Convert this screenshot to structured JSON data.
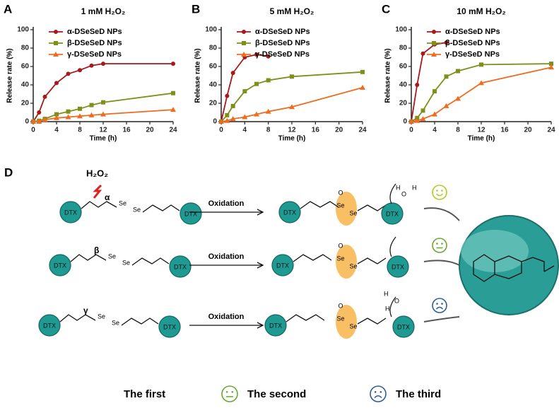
{
  "chart_data": [
    {
      "type": "line",
      "panel": "A",
      "title": "1 mM H₂O₂",
      "xlabel": "Time (h)",
      "ylabel": "Release rate (%)",
      "x": [
        0,
        1,
        2,
        4,
        6,
        8,
        10,
        12,
        24
      ],
      "xlim": [
        0,
        24
      ],
      "xticks": [
        0,
        4,
        8,
        12,
        16,
        20,
        24
      ],
      "ylim": [
        0,
        100
      ],
      "yticks": [
        0,
        20,
        40,
        60,
        80,
        100
      ],
      "series": [
        {
          "name": "α-DSeSeD NPs",
          "color": "#a8191c",
          "marker": "circle",
          "values": [
            0,
            10,
            27,
            42,
            52,
            56,
            61,
            63,
            63
          ]
        },
        {
          "name": "β-DSeSeD NPs",
          "color": "#7f8f1a",
          "marker": "square",
          "values": [
            0,
            1,
            3,
            8,
            11,
            14,
            18,
            21,
            31
          ]
        },
        {
          "name": "γ-DSeSeD NPs",
          "color": "#ef6b1f",
          "marker": "triangle",
          "values": [
            0,
            0,
            2,
            4,
            5,
            6,
            7,
            8,
            13
          ]
        }
      ]
    },
    {
      "type": "line",
      "panel": "B",
      "title": "5 mM H₂O₂",
      "xlabel": "Time (h)",
      "ylabel": "Release rate (%)",
      "x": [
        0,
        1,
        2,
        4,
        6,
        8,
        12,
        24
      ],
      "xlim": [
        0,
        24
      ],
      "xticks": [
        0,
        4,
        8,
        12,
        16,
        20,
        24
      ],
      "ylim": [
        0,
        100
      ],
      "yticks": [
        0,
        20,
        40,
        60,
        80,
        100
      ],
      "series": [
        {
          "name": "α-DSeSeD NPs",
          "color": "#a8191c",
          "marker": "circle",
          "values": [
            0,
            28,
            53,
            70,
            73,
            71,
            null,
            null
          ]
        },
        {
          "name": "β-DSeSeD NPs",
          "color": "#7f8f1a",
          "marker": "square",
          "values": [
            0,
            7,
            17,
            33,
            41,
            45,
            49,
            54
          ]
        },
        {
          "name": "γ-DSeSeD NPs",
          "color": "#ef6b1f",
          "marker": "triangle",
          "values": [
            0,
            1,
            3,
            5,
            8,
            11,
            16,
            37
          ]
        }
      ]
    },
    {
      "type": "line",
      "panel": "C",
      "title": "10 mM H₂O₂",
      "xlabel": "Time (h)",
      "ylabel": "Release rate (%)",
      "x": [
        0,
        1,
        2,
        4,
        6,
        8,
        12,
        24
      ],
      "xlim": [
        0,
        24
      ],
      "xticks": [
        0,
        4,
        8,
        12,
        16,
        20,
        24
      ],
      "ylim": [
        0,
        100
      ],
      "yticks": [
        0,
        20,
        40,
        60,
        80,
        100
      ],
      "series": [
        {
          "name": "α-DSeSeD NPs",
          "color": "#a8191c",
          "marker": "circle",
          "values": [
            0,
            40,
            74,
            84,
            86,
            null,
            null,
            null
          ]
        },
        {
          "name": "β-DSeSeD NPs",
          "color": "#7f8f1a",
          "marker": "square",
          "values": [
            0,
            4,
            12,
            33,
            49,
            55,
            62,
            63
          ]
        },
        {
          "name": "γ-DSeSeD NPs",
          "color": "#ef6b1f",
          "marker": "triangle",
          "values": [
            0,
            1,
            3,
            8,
            17,
            25,
            42,
            59
          ]
        }
      ]
    }
  ],
  "diagram": {
    "panel": "D",
    "oxidant": "H₂O₂",
    "dtx": "DTX",
    "se": "Se",
    "o": "O",
    "h": "H",
    "rows": [
      {
        "greek": "α",
        "arrow": "Oxidation"
      },
      {
        "greek": "β",
        "arrow": "Oxidation"
      },
      {
        "greek": "γ",
        "arrow": "Oxidation"
      }
    ],
    "legend": [
      "The first",
      "The second",
      "The third"
    ]
  }
}
